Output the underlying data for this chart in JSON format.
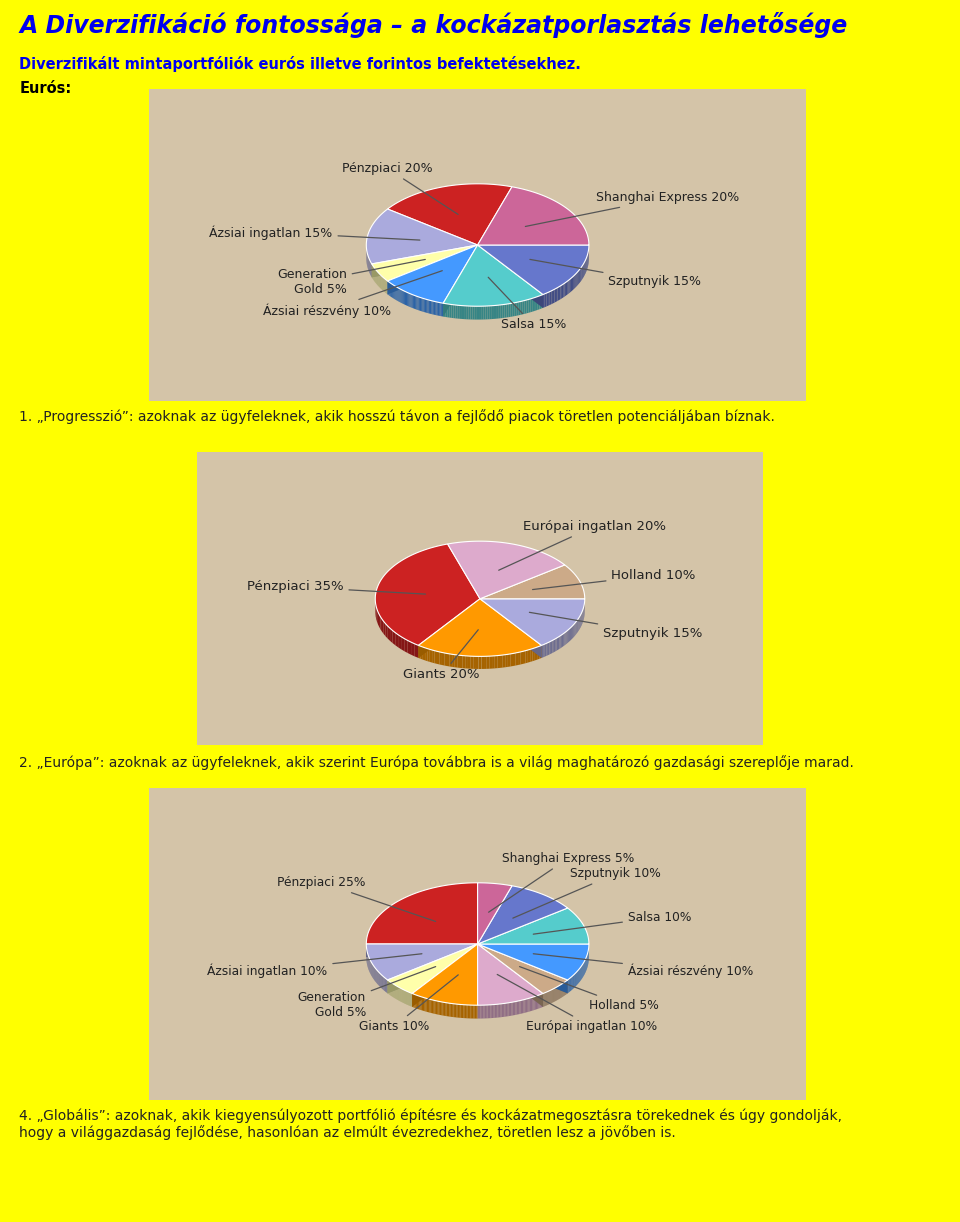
{
  "title": "A Diverzifikáció fontossága – a kockázatporlasztás lehetősége",
  "subtitle": "Diverzifikált mintaportfóliók eurós illetve forintos befektetésekhez.",
  "euros_label": "Eurós:",
  "background_color": "#FFFF00",
  "pie_bg_color": "#D4C4A8",
  "title_color": "#0000EE",
  "subtitle_color": "#0000EE",
  "text_color": "#222222",
  "bold_text_color": "#000000",
  "note1": "1. „Progresszió”: azoknak az ügyfeleknek, akik hosszú távon a fejlődő piacok töretlen potenciáljában bíznak.",
  "note2": "2. „Európa”: azoknak az ügyfeleknek, akik szerint Európa továbbra is a világ maghatározó gazdasági szereplője marad.",
  "note4": "4. „Globális”: azoknak, akik kiegyensúlyozott portfólió építésre és kockázatmegosztásra törekednek és úgy gondolják,\nhogy a világgazdaság fejlődése, hasonlóan az elmúlt évezredekhez, töretlen lesz a jövőben is.",
  "pie1_slices": [
    20,
    15,
    5,
    10,
    15,
    15,
    20
  ],
  "pie1_labels": [
    "Pénzpiaci 20%",
    "Ázsiai ingatlan 15%",
    "Generation\nGold 5%",
    "Ázsiai részvény 10%",
    "Salsa 15%",
    "Szputnyik 15%",
    "Shanghai Express 20%"
  ],
  "pie1_colors": [
    "#CC2222",
    "#AAAADD",
    "#FFFFAA",
    "#4499FF",
    "#55CCCC",
    "#6677CC",
    "#CC6699"
  ],
  "pie1_startangle": 72,
  "pie2_slices": [
    35,
    20,
    15,
    10,
    20
  ],
  "pie2_labels": [
    "Pénzpiaci 35%",
    "Giants 20%",
    "Szputnyik 15%",
    "Holland 10%",
    "Európai ingatlan 20%"
  ],
  "pie2_colors": [
    "#CC2222",
    "#FF9900",
    "#AAAADD",
    "#CCAA88",
    "#DDAACC"
  ],
  "pie2_startangle": 108,
  "pie3_slices": [
    25,
    10,
    5,
    10,
    10,
    5,
    10,
    10,
    10,
    5
  ],
  "pie3_labels": [
    "Pénzpiaci 25%",
    "Ázsiai ingatlan 10%",
    "Generation\nGold 5%",
    "Giants 10%",
    "Európai ingatlan 10%",
    "Holland 5%",
    "Ázsiai részvény 10%",
    "Salsa 10%",
    "Szputnyik 10%",
    "Shanghai Express 5%"
  ],
  "pie3_colors": [
    "#CC2222",
    "#AAAADD",
    "#FFFFAA",
    "#FF9900",
    "#DDAACC",
    "#CCAA88",
    "#4499FF",
    "#55CCCC",
    "#6677CC",
    "#CC6699"
  ],
  "pie3_startangle": 90
}
